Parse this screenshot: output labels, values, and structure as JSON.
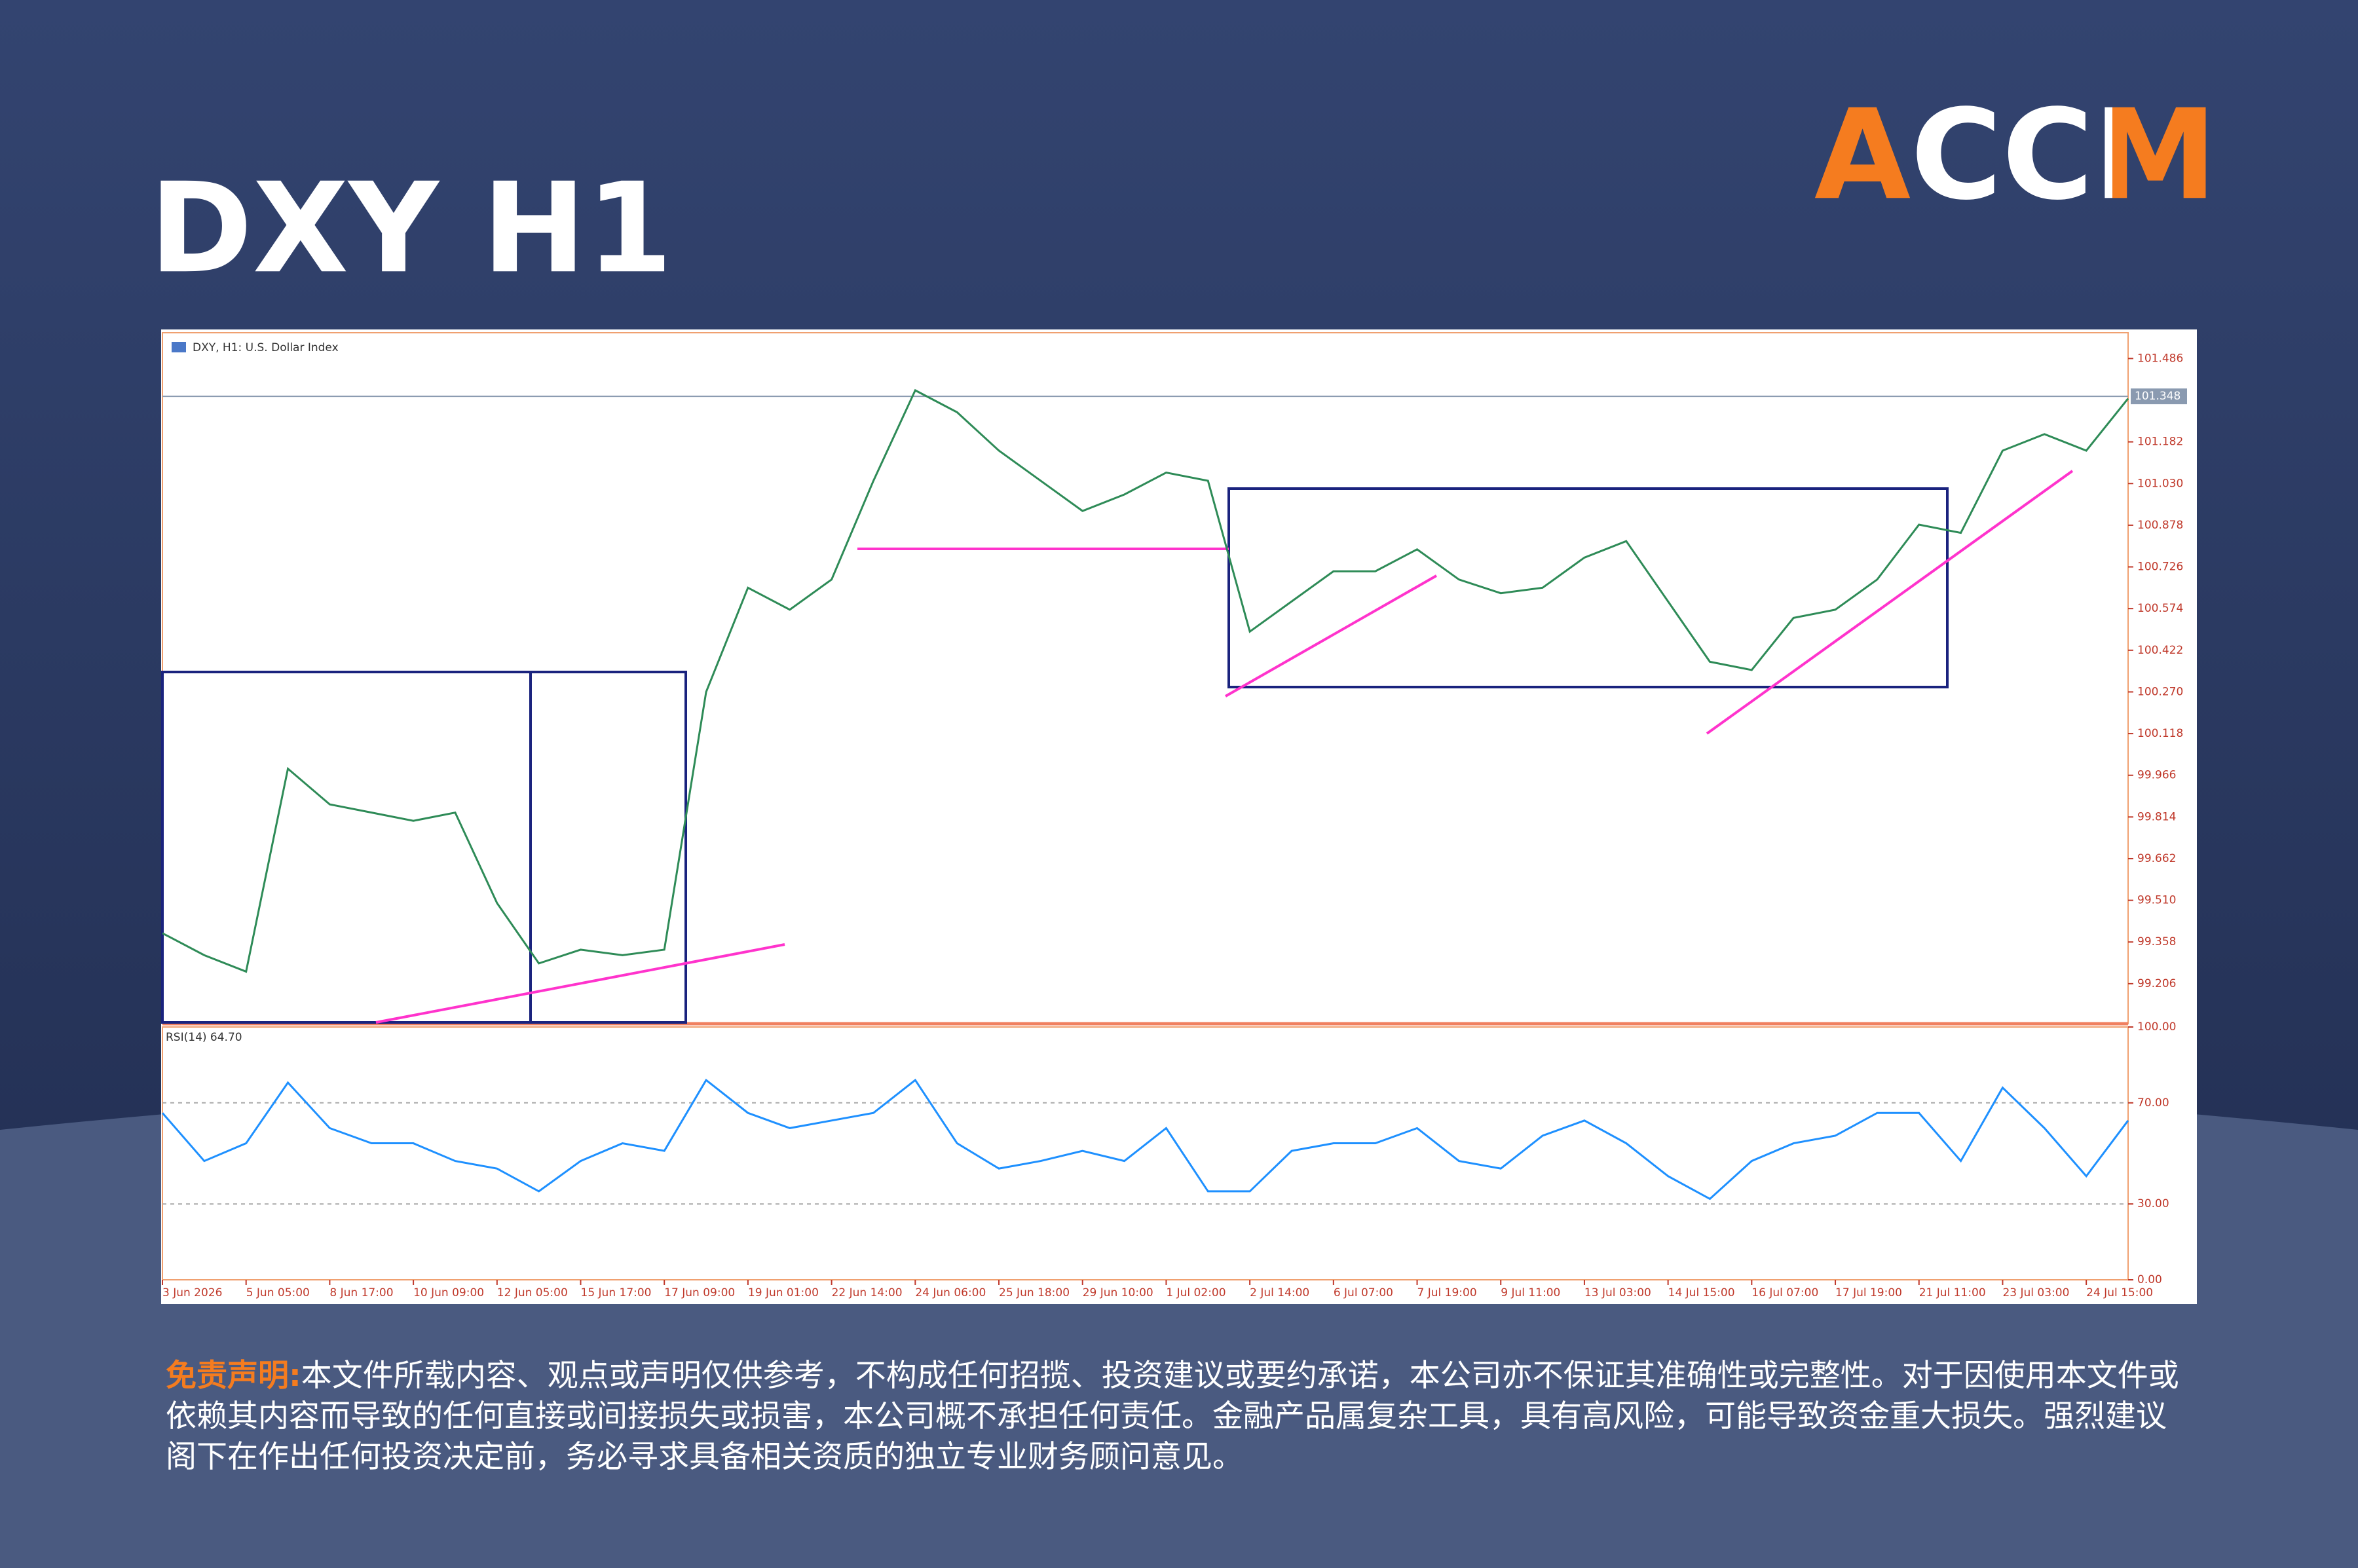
{
  "header": {
    "title": "DXY H1",
    "logo": "ACCM"
  },
  "chart_data": [
    {
      "type": "line",
      "title": "DXY, H1: U.S. Dollar Index",
      "color": "#2e8b57",
      "values": [
        99.39,
        99.31,
        99.25,
        99.99,
        99.86,
        99.83,
        99.8,
        99.83,
        99.5,
        99.28,
        99.33,
        99.31,
        99.33,
        100.27,
        100.65,
        100.57,
        100.68,
        101.04,
        101.37,
        101.29,
        101.15,
        101.04,
        100.93,
        100.99,
        101.07,
        101.04,
        100.49,
        100.6,
        100.71,
        100.71,
        100.79,
        100.68,
        100.63,
        100.65,
        100.76,
        100.82,
        100.6,
        100.38,
        100.35,
        100.54,
        100.57,
        100.68,
        100.88,
        100.85,
        101.15,
        101.21,
        101.15,
        101.34
      ],
      "ylim": [
        99.06,
        101.58
      ],
      "yticks": [
        101.486,
        101.182,
        {
          "value": 101.03,
          "label": "101.030"
        },
        100.878,
        100.726,
        100.574,
        100.422,
        {
          "value": 100.27,
          "label": "100.270"
        },
        100.118,
        99.966,
        99.814,
        99.662,
        {
          "value": 99.51,
          "label": "99.510"
        },
        99.358,
        99.206
      ],
      "current_price": {
        "value": 101.348,
        "label": "101.348"
      }
    },
    {
      "type": "line",
      "title": "RSI(14) 64.70",
      "color": "#1e90ff",
      "categories": [
        "3 Jun 2026",
        null,
        "5 Jun 05:00",
        null,
        "8 Jun 17:00",
        null,
        "10 Jun 09:00",
        null,
        "12 Jun 05:00",
        null,
        "15 Jun 17:00",
        null,
        "17 Jun 09:00",
        null,
        "19 Jun 01:00",
        null,
        "22 Jun 14:00",
        null,
        "24 Jun 06:00",
        null,
        "25 Jun 18:00",
        null,
        "29 Jun 10:00",
        null,
        "1 Jul 02:00",
        null,
        "2 Jul 14:00",
        null,
        "6 Jul 07:00",
        null,
        "7 Jul 19:00",
        null,
        "9 Jul 11:00",
        null,
        "13 Jul 03:00",
        null,
        "14 Jul 15:00",
        null,
        "16 Jul 07:00",
        null,
        "17 Jul 19:00",
        null,
        "21 Jul 11:00",
        null,
        "23 Jul 03:00",
        null,
        "24 Jul 15:00",
        null
      ],
      "values": [
        66,
        47,
        54,
        78,
        60,
        54,
        54,
        47,
        44,
        35,
        47,
        54,
        51,
        79,
        66,
        60,
        63,
        66,
        79,
        54,
        44,
        47,
        51,
        47,
        60,
        35,
        35,
        51,
        54,
        54,
        60,
        47,
        44,
        57,
        63,
        54,
        41,
        32,
        47,
        54,
        57,
        66,
        66,
        47,
        76,
        60,
        41,
        63
      ],
      "ylim": [
        0,
        100
      ],
      "yticks": [
        {
          "value": 100,
          "label": "100.00"
        },
        {
          "value": 70,
          "label": "70.00"
        },
        {
          "value": 30,
          "label": "30.00"
        },
        {
          "value": 0,
          "label": "0.00"
        }
      ]
    }
  ],
  "disclaimer": {
    "label": "免责声明:",
    "text": "本文件所载内容、观点或声明仅供参考，不构成任何招揽、投资建议或要约承诺，本公司亦不保证其准确性或完整性。对于因使用本文件或依赖其内容而导致的任何直接或间接损失或损害，本公司概不承担任何责任。金融产品属复杂工具，具有高风险，可能导致资金重大损失。强烈建议阁下在作出任何投资决定前，务必寻求具备相关资质的独立专业财务顾问意见。"
  }
}
